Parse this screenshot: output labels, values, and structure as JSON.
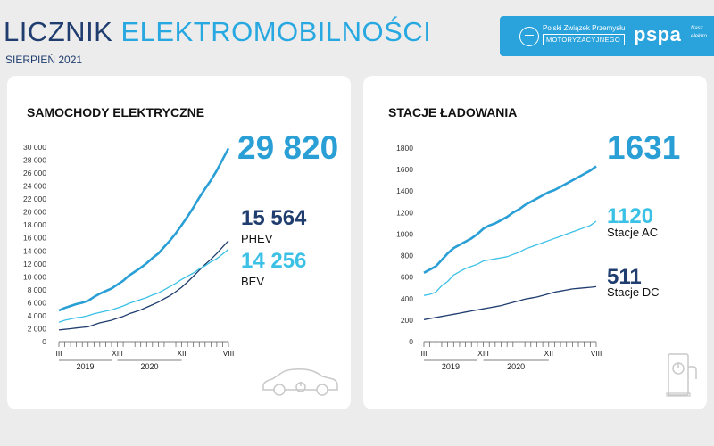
{
  "header": {
    "title_part1": "LICZNIK",
    "title_part2": "ELEKTROMOBILNOŚCI",
    "subtitle": "SIERPIEŃ 2021",
    "pzpm_line1": "Polski Związek Przemysłu",
    "pzpm_line2": "MOTORYZACYJNEGO",
    "pspa": "pspa",
    "pspa_tagline_1": "Nasz",
    "pspa_tagline_2": "elektro"
  },
  "colors": {
    "total": "#2a9fd6",
    "dark": "#1f3d6e",
    "light": "#3cc1e6"
  },
  "icons": {
    "car": "car-outline-icon",
    "charger": "charging-station-icon"
  },
  "panels": {
    "cars": {
      "title": "SAMOCHODY ELEKTRYCZNE",
      "total_value": "29 820",
      "phev_value": "15 564",
      "phev_label": "PHEV",
      "bev_value": "14 256",
      "bev_label": "BEV"
    },
    "stations": {
      "title": "STACJE ŁADOWANIA",
      "total_value": "1631",
      "ac_value": "1120",
      "ac_label": "Stacje AC",
      "dc_value": "511",
      "dc_label": "Stacje DC"
    }
  },
  "chart_data": [
    {
      "type": "line",
      "title": "SAMOCHODY ELEKTRYCZNE",
      "x": [
        "III 2019",
        "IV 2019",
        "V 2019",
        "VI 2019",
        "VII 2019",
        "VIII 2019",
        "IX 2019",
        "X 2019",
        "XI 2019",
        "XII 2019",
        "I 2020",
        "II 2020",
        "III 2020",
        "IV 2020",
        "V 2020",
        "VI 2020",
        "VII 2020",
        "VIII 2020",
        "IX 2020",
        "X 2020",
        "XI 2020",
        "XII 2020",
        "I 2021",
        "II 2021",
        "III 2021",
        "IV 2021",
        "V 2021",
        "VI 2021",
        "VII 2021",
        "VIII 2021"
      ],
      "x_tick_labels": [
        "III",
        "XIII",
        "XII",
        "VIII"
      ],
      "x_tick_index": [
        0,
        10,
        21,
        29
      ],
      "year_labels": [
        {
          "label": "2019",
          "start": 0,
          "end": 9
        },
        {
          "label": "2020",
          "start": 10,
          "end": 21
        }
      ],
      "ylim": [
        0,
        30000
      ],
      "yticks": [
        0,
        2000,
        4000,
        6000,
        8000,
        10000,
        12000,
        14000,
        16000,
        18000,
        20000,
        22000,
        24000,
        26000,
        28000,
        30000
      ],
      "ytick_labels": [
        "0",
        "2 000",
        "4 000",
        "6 000",
        "8 000",
        "10 000",
        "12 000",
        "14 000",
        "16 000",
        "18 000",
        "20 000",
        "22 000",
        "24 000",
        "26 000",
        "28 000",
        "30 000"
      ],
      "series": [
        {
          "name": "PHEV",
          "color": "#1f3d6e",
          "values": [
            1800,
            1900,
            2000,
            2100,
            2200,
            2300,
            2600,
            2900,
            3100,
            3300,
            3600,
            3900,
            4300,
            4600,
            4900,
            5300,
            5700,
            6100,
            6600,
            7100,
            7700,
            8400,
            9200,
            10100,
            11000,
            11900,
            12700,
            13600,
            14600,
            15564
          ]
        },
        {
          "name": "BEV",
          "color": "#3cc1e6",
          "values": [
            3000,
            3300,
            3500,
            3700,
            3800,
            4000,
            4300,
            4500,
            4700,
            4900,
            5200,
            5500,
            5900,
            6200,
            6500,
            6800,
            7200,
            7500,
            8000,
            8500,
            9000,
            9600,
            10100,
            10600,
            11200,
            11700,
            12300,
            12800,
            13500,
            14256
          ]
        },
        {
          "name": "",
          "color": "#2a9fd6",
          "values": [
            4800,
            5200,
            5500,
            5800,
            6000,
            6300,
            6900,
            7400,
            7800,
            8200,
            8800,
            9400,
            10200,
            10800,
            11400,
            12100,
            12900,
            13600,
            14600,
            15600,
            16700,
            18000,
            19300,
            20700,
            22200,
            23600,
            24900,
            26400,
            28100,
            29820
          ]
        }
      ]
    },
    {
      "type": "line",
      "title": "STACJE ŁADOWANIA",
      "x": [
        "III 2019",
        "IV 2019",
        "V 2019",
        "VI 2019",
        "VII 2019",
        "VIII 2019",
        "IX 2019",
        "X 2019",
        "XI 2019",
        "XII 2019",
        "I 2020",
        "II 2020",
        "III 2020",
        "IV 2020",
        "V 2020",
        "VI 2020",
        "VII 2020",
        "VIII 2020",
        "IX 2020",
        "X 2020",
        "XI 2020",
        "XII 2020",
        "I 2021",
        "II 2021",
        "III 2021",
        "IV 2021",
        "V 2021",
        "VI 2021",
        "VII 2021",
        "VIII 2021"
      ],
      "x_tick_labels": [
        "III",
        "XIII",
        "XII",
        "VIII"
      ],
      "x_tick_index": [
        0,
        10,
        21,
        29
      ],
      "year_labels": [
        {
          "label": "2019",
          "start": 0,
          "end": 9
        },
        {
          "label": "2020",
          "start": 10,
          "end": 21
        }
      ],
      "ylim": [
        0,
        1800
      ],
      "yticks": [
        0,
        200,
        400,
        600,
        800,
        1000,
        1200,
        1400,
        1600,
        1800
      ],
      "ytick_labels": [
        "0",
        "200",
        "400",
        "600",
        "800",
        "1000",
        "1200",
        "1400",
        "1600",
        "1800"
      ],
      "series": [
        {
          "name": "Stacje DC",
          "color": "#1f3d6e",
          "values": [
            205,
            215,
            225,
            235,
            245,
            255,
            265,
            275,
            285,
            295,
            305,
            315,
            325,
            335,
            350,
            365,
            380,
            395,
            405,
            415,
            430,
            445,
            460,
            470,
            480,
            490,
            495,
            500,
            505,
            511
          ]
        },
        {
          "name": "Stacje AC",
          "color": "#3cc1e6",
          "values": [
            430,
            440,
            460,
            520,
            560,
            620,
            650,
            680,
            700,
            720,
            750,
            760,
            770,
            780,
            790,
            810,
            830,
            860,
            880,
            900,
            920,
            940,
            960,
            980,
            1000,
            1020,
            1040,
            1060,
            1080,
            1120
          ]
        },
        {
          "name": "",
          "color": "#2a9fd6",
          "values": [
            640,
            670,
            700,
            760,
            820,
            870,
            900,
            930,
            960,
            1000,
            1050,
            1080,
            1100,
            1130,
            1160,
            1200,
            1230,
            1270,
            1300,
            1330,
            1360,
            1390,
            1410,
            1440,
            1470,
            1500,
            1530,
            1560,
            1590,
            1631
          ]
        }
      ]
    }
  ]
}
